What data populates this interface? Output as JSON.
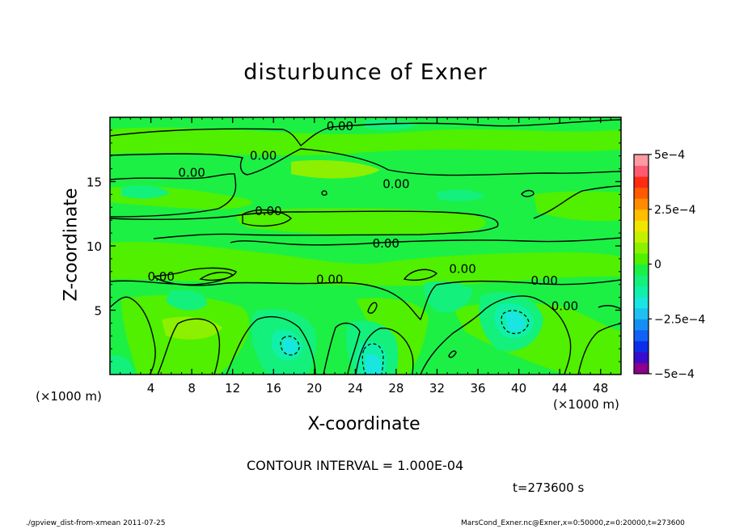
{
  "chart_data": {
    "type": "heatmap",
    "title": "disturbunce of Exner",
    "xlabel": "X-coordinate",
    "ylabel": "Z-coordinate",
    "x_unit_left": "(×1000 m)",
    "x_unit_right": "(×1000 m)",
    "xlim": [
      0,
      50
    ],
    "ylim": [
      0,
      20
    ],
    "x_ticks": [
      4,
      8,
      12,
      16,
      20,
      24,
      28,
      32,
      36,
      40,
      44,
      48
    ],
    "x_tick_labels": [
      "4",
      "8",
      "12",
      "16",
      "20",
      "24",
      "28",
      "32",
      "36",
      "40",
      "44",
      "48"
    ],
    "y_ticks": [
      5,
      10,
      15
    ],
    "y_tick_labels": [
      "5",
      "10",
      "15"
    ],
    "contour_interval": "CONTOUR INTERVAL = 1.000E-04",
    "contour_label_text": "0.00",
    "contour_labels": [
      {
        "x": 22.5,
        "z": 19.3
      },
      {
        "x": 15.0,
        "z": 17.0
      },
      {
        "x": 8.0,
        "z": 15.7
      },
      {
        "x": 28.0,
        "z": 14.8
      },
      {
        "x": 15.5,
        "z": 12.7
      },
      {
        "x": 27.0,
        "z": 10.2
      },
      {
        "x": 5.0,
        "z": 7.6
      },
      {
        "x": 21.5,
        "z": 7.4
      },
      {
        "x": 34.5,
        "z": 8.2
      },
      {
        "x": 42.5,
        "z": 7.3
      },
      {
        "x": 44.5,
        "z": 5.3
      }
    ],
    "colorbar": {
      "min": -0.0005,
      "max": 0.0005,
      "tick_values": [
        0.0005,
        0.00025,
        0,
        -0.00025,
        -0.0005
      ],
      "tick_labels": [
        "5e−4",
        "2.5e−4",
        "0",
        "−2.5e−4",
        "−5e−4"
      ],
      "colors": [
        "#8b008b",
        "#3b0bcc",
        "#0d2ee8",
        "#0f62f5",
        "#168ff5",
        "#1ec0f0",
        "#19e6e0",
        "#10f0a8",
        "#13f07c",
        "#1cf045",
        "#50f000",
        "#8cf000",
        "#c4f000",
        "#f0e600",
        "#ffbe00",
        "#ff8c00",
        "#ff5a00",
        "#ff2a14",
        "#ff5a6e",
        "#ff9aa0"
      ]
    },
    "dominant_field": "near-zero values (greens); cyan minima near x≈18,z≈2; x≈25,z≈1.5; x≈39,z≈4"
  },
  "annotations": {
    "time": "t=273600 s",
    "footer_left": "./gpview_dist-from-xmean  2011-07-25",
    "footer_right": "MarsCond_Exner.nc@Exner,x=0:50000,z=0:20000,t=273600"
  }
}
